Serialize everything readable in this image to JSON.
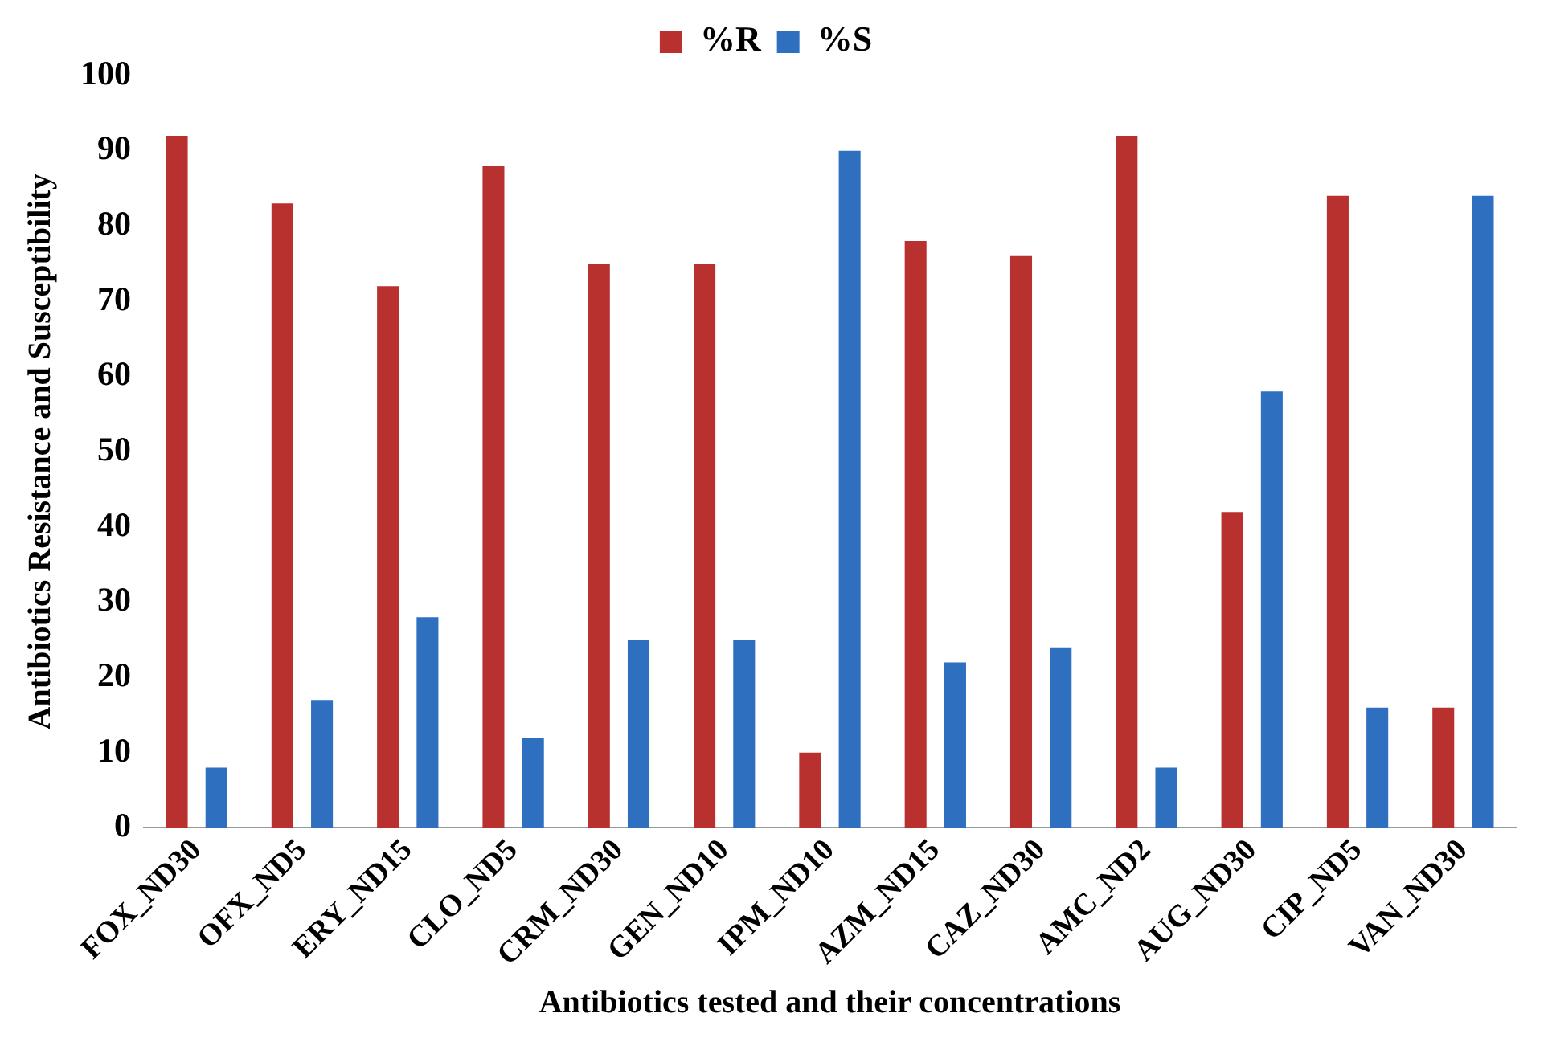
{
  "chart_data": {
    "type": "bar",
    "xlabel": "Antibiotics tested and their concentrations",
    "ylabel": "Antibiotics Resistance and Susceptibility",
    "categories": [
      "FOX_ND30",
      "OFX_ND5",
      "ERY_ND15",
      "CLO_ND5",
      "CRM_ND30",
      "GEN_ND10",
      "IPM_ND10",
      "AZM_ND15",
      "CAZ_ND30",
      "AMC_ND2",
      "AUG_ND30",
      "CIP_ND5",
      "VAN_ND30"
    ],
    "series": [
      {
        "name": "%R",
        "color": "#b8312f",
        "values": [
          92,
          83,
          72,
          88,
          75,
          75,
          10,
          78,
          76,
          92,
          42,
          84,
          16
        ]
      },
      {
        "name": "%S",
        "color": "#2e6fc0",
        "values": [
          8,
          17,
          28,
          12,
          25,
          25,
          90,
          22,
          24,
          8,
          58,
          16,
          84
        ]
      }
    ],
    "ylim": [
      0,
      100
    ],
    "yticks": [
      0,
      10,
      20,
      30,
      40,
      50,
      60,
      70,
      80,
      90,
      100
    ],
    "grid": false,
    "legend": "top"
  }
}
